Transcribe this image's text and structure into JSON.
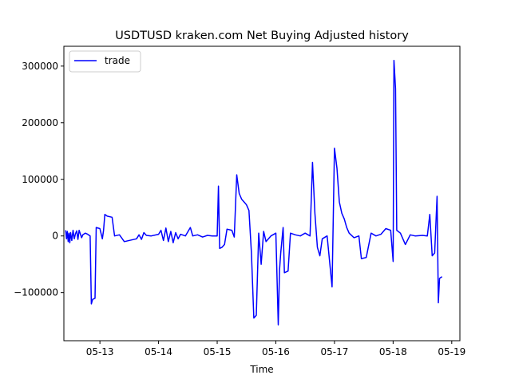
{
  "chart_data": {
    "type": "line",
    "title": "USDTUSD kraken.com Net Buying Adjusted history",
    "xlabel": "Time",
    "ylabel": "",
    "xlim": [
      "05-12 09:15",
      "05-19 03:20"
    ],
    "ylim": [
      -185000,
      335000
    ],
    "x_ticks": [
      "05-13",
      "05-14",
      "05-15",
      "05-16",
      "05-17",
      "05-18",
      "05-19"
    ],
    "y_ticks": [
      -100000,
      0,
      100000,
      200000,
      300000
    ],
    "y_tick_labels": [
      "−100000",
      "0",
      "100000",
      "200000",
      "300000"
    ],
    "grid": false,
    "legend_position": "upper-left",
    "series": [
      {
        "name": "trade",
        "color": "#0000ff",
        "points": [
          [
            "05-12 10:00",
            10000
          ],
          [
            "05-12 10:20",
            -5000
          ],
          [
            "05-12 10:40",
            8000
          ],
          [
            "05-12 11:00",
            -10000
          ],
          [
            "05-12 11:20",
            5000
          ],
          [
            "05-12 11:40",
            -12000
          ],
          [
            "05-12 12:00",
            6000
          ],
          [
            "05-12 12:30",
            -8000
          ],
          [
            "05-12 13:00",
            10000
          ],
          [
            "05-12 13:30",
            -5000
          ],
          [
            "05-12 14:00",
            4000
          ],
          [
            "05-12 14:30",
            9000
          ],
          [
            "05-12 15:00",
            -6000
          ],
          [
            "05-12 15:30",
            10000
          ],
          [
            "05-12 16:30",
            -3000
          ],
          [
            "05-12 17:00",
            2000
          ],
          [
            "05-12 18:00",
            5000
          ],
          [
            "05-12 19:00",
            3000
          ],
          [
            "05-12 20:00",
            0
          ],
          [
            "05-12 20:30",
            -120000
          ],
          [
            "05-12 21:00",
            -112000
          ],
          [
            "05-12 22:00",
            -110000
          ],
          [
            "05-12 22:30",
            15000
          ],
          [
            "05-13 00:00",
            13000
          ],
          [
            "05-13 01:00",
            -5000
          ],
          [
            "05-13 01:30",
            10000
          ],
          [
            "05-13 02:00",
            38000
          ],
          [
            "05-13 03:00",
            35000
          ],
          [
            "05-13 05:00",
            33000
          ],
          [
            "05-13 06:00",
            0
          ],
          [
            "05-13 08:00",
            2000
          ],
          [
            "05-13 10:00",
            -10000
          ],
          [
            "05-13 13:00",
            -7000
          ],
          [
            "05-13 15:00",
            -5000
          ],
          [
            "05-13 16:00",
            2000
          ],
          [
            "05-13 17:00",
            -6000
          ],
          [
            "05-13 18:00",
            6000
          ],
          [
            "05-13 19:00",
            1000
          ],
          [
            "05-13 21:00",
            0
          ],
          [
            "05-14 00:00",
            3000
          ],
          [
            "05-14 01:00",
            10000
          ],
          [
            "05-14 02:00",
            -8000
          ],
          [
            "05-14 03:00",
            14000
          ],
          [
            "05-14 04:00",
            -10000
          ],
          [
            "05-14 05:00",
            8000
          ],
          [
            "05-14 06:00",
            -12000
          ],
          [
            "05-14 07:00",
            6000
          ],
          [
            "05-14 08:00",
            -5000
          ],
          [
            "05-14 09:00",
            3000
          ],
          [
            "05-14 11:00",
            0
          ],
          [
            "05-14 13:00",
            15000
          ],
          [
            "05-14 14:00",
            0
          ],
          [
            "05-14 16:00",
            2000
          ],
          [
            "05-14 18:00",
            -2000
          ],
          [
            "05-14 20:00",
            1000
          ],
          [
            "05-14 22:00",
            0
          ],
          [
            "05-15 00:00",
            0
          ],
          [
            "05-15 00:30",
            88000
          ],
          [
            "05-15 01:00",
            -22000
          ],
          [
            "05-15 02:00",
            -20000
          ],
          [
            "05-15 03:00",
            -15000
          ],
          [
            "05-15 04:00",
            12000
          ],
          [
            "05-15 06:00",
            10000
          ],
          [
            "05-15 07:00",
            -2000
          ],
          [
            "05-15 08:00",
            108000
          ],
          [
            "05-15 09:00",
            75000
          ],
          [
            "05-15 10:00",
            65000
          ],
          [
            "05-15 11:00",
            60000
          ],
          [
            "05-15 12:00",
            55000
          ],
          [
            "05-15 13:00",
            45000
          ],
          [
            "05-15 14:00",
            -30000
          ],
          [
            "05-15 15:00",
            -145000
          ],
          [
            "05-15 16:00",
            -140000
          ],
          [
            "05-15 17:00",
            5000
          ],
          [
            "05-15 18:00",
            -50000
          ],
          [
            "05-15 19:00",
            8000
          ],
          [
            "05-15 20:00",
            -10000
          ],
          [
            "05-15 22:00",
            0
          ],
          [
            "05-16 00:00",
            5000
          ],
          [
            "05-16 01:00",
            -157000
          ],
          [
            "05-16 01:30",
            -60000
          ],
          [
            "05-16 02:00",
            -30000
          ],
          [
            "05-16 03:00",
            15000
          ],
          [
            "05-16 03:30",
            -65000
          ],
          [
            "05-16 05:00",
            -62000
          ],
          [
            "05-16 06:00",
            5000
          ],
          [
            "05-16 08:00",
            2000
          ],
          [
            "05-16 10:00",
            0
          ],
          [
            "05-16 12:00",
            5000
          ],
          [
            "05-16 14:00",
            0
          ],
          [
            "05-16 15:00",
            130000
          ],
          [
            "05-16 16:00",
            40000
          ],
          [
            "05-16 17:00",
            -20000
          ],
          [
            "05-16 18:00",
            -35000
          ],
          [
            "05-16 19:00",
            -5000
          ],
          [
            "05-16 21:00",
            0
          ],
          [
            "05-16 23:00",
            -90000
          ],
          [
            "05-17 00:00",
            155000
          ],
          [
            "05-17 01:00",
            120000
          ],
          [
            "05-17 02:00",
            60000
          ],
          [
            "05-17 03:00",
            40000
          ],
          [
            "05-17 04:00",
            30000
          ],
          [
            "05-17 05:00",
            15000
          ],
          [
            "05-17 06:00",
            5000
          ],
          [
            "05-17 08:00",
            -3000
          ],
          [
            "05-17 10:00",
            0
          ],
          [
            "05-17 11:00",
            -40000
          ],
          [
            "05-17 13:00",
            -38000
          ],
          [
            "05-17 15:00",
            5000
          ],
          [
            "05-17 17:00",
            0
          ],
          [
            "05-17 19:00",
            3000
          ],
          [
            "05-17 21:00",
            13000
          ],
          [
            "05-17 23:00",
            10000
          ],
          [
            "05-18 00:00",
            -45000
          ],
          [
            "05-18 00:20",
            310000
          ],
          [
            "05-18 01:00",
            260000
          ],
          [
            "05-18 01:30",
            10000
          ],
          [
            "05-18 03:00",
            5000
          ],
          [
            "05-18 05:00",
            -15000
          ],
          [
            "05-18 07:00",
            2000
          ],
          [
            "05-18 09:00",
            0
          ],
          [
            "05-18 12:00",
            1000
          ],
          [
            "05-18 14:00",
            0
          ],
          [
            "05-18 15:00",
            38000
          ],
          [
            "05-18 16:00",
            -35000
          ],
          [
            "05-18 17:00",
            -30000
          ],
          [
            "05-18 18:00",
            70000
          ],
          [
            "05-18 18:30",
            -118000
          ],
          [
            "05-18 19:00",
            -75000
          ],
          [
            "05-18 20:00",
            -72000
          ]
        ]
      }
    ]
  }
}
